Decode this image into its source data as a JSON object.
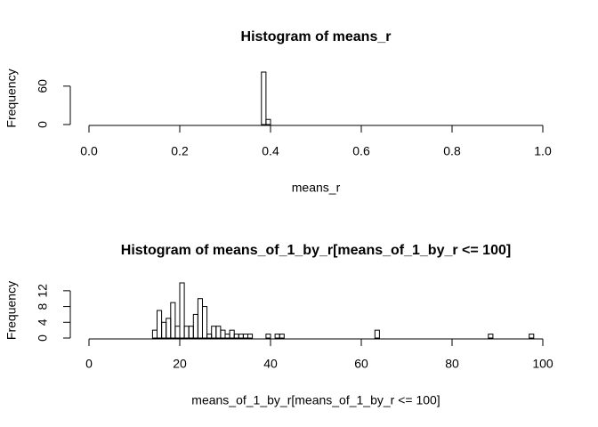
{
  "chart_data": [
    {
      "type": "histogram",
      "title": "Histogram of means_r",
      "x_label": "means_r",
      "y_label": "Frequency",
      "bins": [
        0,
        0.01,
        0.02,
        0.03,
        0.04,
        0.05,
        0.06,
        0.07,
        0.08,
        0.09,
        0.1,
        0.11,
        0.12,
        0.13,
        0.14,
        0.15,
        0.16,
        0.17,
        0.18,
        0.19,
        0.2,
        0.21,
        0.22,
        0.23,
        0.24,
        0.25,
        0.26,
        0.27,
        0.28,
        0.29,
        0.3,
        0.31,
        0.32,
        0.33,
        0.34,
        0.35,
        0.36,
        0.37,
        0.38,
        0.39,
        0.4,
        0.41,
        0.42,
        0.43,
        0.44,
        0.45,
        0.46,
        0.47,
        0.48,
        0.49,
        0.5,
        0.51,
        0.52,
        0.53,
        0.54,
        0.55,
        0.56,
        0.57,
        0.58,
        0.59,
        0.6,
        0.61,
        0.62,
        0.63,
        0.64,
        0.65,
        0.66,
        0.67,
        0.68,
        0.69,
        0.7,
        0.71,
        0.72,
        0.73,
        0.74,
        0.75,
        0.76,
        0.77,
        0.78,
        0.79,
        0.8,
        0.81,
        0.82,
        0.83,
        0.84,
        0.85,
        0.86,
        0.87,
        0.88,
        0.89,
        0.9,
        0.91,
        0.92,
        0.93,
        0.94,
        0.95,
        0.96,
        0.97,
        0.98,
        0.99,
        1
      ],
      "counts": [
        0,
        0,
        0,
        0,
        0,
        0,
        0,
        0,
        0,
        0,
        0,
        0,
        0,
        0,
        0,
        0,
        0,
        0,
        0,
        0,
        0,
        0,
        0,
        0,
        0,
        0,
        0,
        0,
        0,
        0,
        0,
        0,
        0,
        0,
        0,
        0,
        0,
        0,
        82,
        8,
        0,
        0,
        0,
        0,
        0,
        0,
        0,
        0,
        0,
        0,
        0,
        0,
        0,
        0,
        0,
        0,
        0,
        0,
        0,
        0,
        0,
        0,
        0,
        0,
        0,
        0,
        0,
        0,
        0,
        0,
        0,
        0,
        0,
        0,
        0,
        0,
        0,
        0,
        0,
        0,
        0,
        0,
        0,
        0,
        0,
        0,
        0,
        0,
        0,
        0,
        0,
        0,
        0,
        0,
        0,
        0,
        0,
        0,
        0,
        0
      ],
      "xlim": [
        0,
        1
      ],
      "ylim": [
        0,
        82
      ],
      "xticks": [
        {
          "value": 0,
          "label": "0.0"
        },
        0.2,
        0.4,
        0.6,
        0.8,
        {
          "value": 1,
          "label": "1.0"
        }
      ],
      "yticks": [
        0,
        60
      ]
    },
    {
      "type": "histogram",
      "title": "Histogram of means_of_1_by_r[means_of_1_by_r <= 100]",
      "x_label": "means_of_1_by_r[means_of_1_by_r <= 100]",
      "y_label": "Frequency",
      "bins": [
        0,
        1,
        2,
        3,
        4,
        5,
        6,
        7,
        8,
        9,
        10,
        11,
        12,
        13,
        14,
        15,
        16,
        17,
        18,
        19,
        20,
        21,
        22,
        23,
        24,
        25,
        26,
        27,
        28,
        29,
        30,
        31,
        32,
        33,
        34,
        35,
        36,
        37,
        38,
        39,
        40,
        41,
        42,
        43,
        44,
        45,
        46,
        47,
        48,
        49,
        50,
        51,
        52,
        53,
        54,
        55,
        56,
        57,
        58,
        59,
        60,
        61,
        62,
        63,
        64,
        65,
        66,
        67,
        68,
        69,
        70,
        71,
        72,
        73,
        74,
        75,
        76,
        77,
        78,
        79,
        80,
        81,
        82,
        83,
        84,
        85,
        86,
        87,
        88,
        89,
        90,
        91,
        92,
        93,
        94,
        95,
        96,
        97,
        98,
        99,
        100
      ],
      "counts": [
        0,
        0,
        0,
        0,
        0,
        0,
        0,
        0,
        0,
        0,
        0,
        0,
        0,
        0,
        2,
        7,
        4,
        5,
        9,
        3,
        14,
        3,
        3,
        6,
        10,
        8,
        1,
        3,
        3,
        2,
        1,
        2,
        1,
        1,
        1,
        1,
        0,
        0,
        0,
        1,
        0,
        1,
        1,
        0,
        0,
        0,
        0,
        0,
        0,
        0,
        0,
        0,
        0,
        0,
        0,
        0,
        0,
        0,
        0,
        0,
        0,
        0,
        0,
        2,
        0,
        0,
        0,
        0,
        0,
        0,
        0,
        0,
        0,
        0,
        0,
        0,
        0,
        0,
        0,
        0,
        0,
        0,
        0,
        0,
        0,
        0,
        0,
        0,
        1,
        0,
        0,
        0,
        0,
        0,
        0,
        0,
        0,
        1,
        0,
        0
      ],
      "xlim": [
        0,
        100
      ],
      "ylim": [
        0,
        14
      ],
      "xticks": [
        0,
        20,
        40,
        60,
        80,
        100
      ],
      "yticks": [
        0,
        4,
        8,
        12
      ]
    }
  ]
}
